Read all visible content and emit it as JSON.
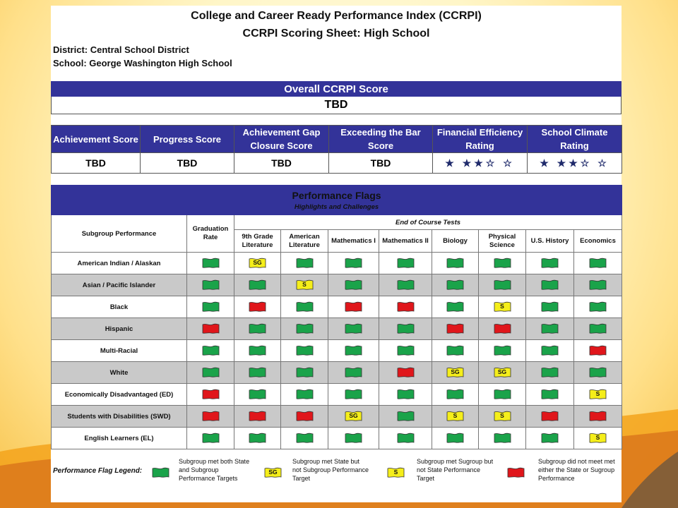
{
  "header": {
    "title_line1": "College and Career Ready Performance Index (CCRPI)",
    "title_line2": "CCRPI Scoring Sheet:  High School",
    "district": "District: Central School District",
    "school": "School: George Washington High School"
  },
  "overall": {
    "label": "Overall CCRPI Score",
    "value": "TBD"
  },
  "scores": [
    {
      "label": "Achievement Score",
      "value": "TBD"
    },
    {
      "label": "Progress Score",
      "value": "TBD"
    },
    {
      "label": "Achievement Gap Closure Score",
      "value": "TBD"
    },
    {
      "label": "Exceeding the Bar Score",
      "value": "TBD"
    },
    {
      "label": "Financial Efficiency Rating",
      "value": "★ ★★☆ ☆"
    },
    {
      "label": "School Climate Rating",
      "value": "★ ★★☆ ☆"
    }
  ],
  "flags_section": {
    "title": "Performance Flags",
    "subtitle": "Highlights and Challenges",
    "subgroup_header": "Subgroup Performance",
    "graduation": "Graduation Rate",
    "eoc_header": "End of Course Tests",
    "courses": [
      "9th Grade Literature",
      "American Literature",
      "Mathematics I",
      "Mathematics II",
      "Biology",
      "Physical Science",
      "U.S. History",
      "Economics"
    ]
  },
  "flag_colors": {
    "green": "#1aa34a",
    "red": "#e0161b",
    "yellow": "#f5ee1a"
  },
  "rows": [
    {
      "label": "American Indian / Alaskan",
      "flags": [
        "green",
        "yellow:SG",
        "green",
        "green",
        "green",
        "green",
        "green",
        "green",
        "green"
      ]
    },
    {
      "label": "Asian / Pacific Islander",
      "flags": [
        "green",
        "green",
        "yellow:S",
        "green",
        "green",
        "green",
        "green",
        "green",
        "green"
      ]
    },
    {
      "label": "Black",
      "flags": [
        "green",
        "red",
        "green",
        "red",
        "red",
        "green",
        "yellow:S",
        "green",
        "green"
      ]
    },
    {
      "label": "Hispanic",
      "flags": [
        "red",
        "green",
        "green",
        "green",
        "green",
        "red",
        "red",
        "green",
        "green"
      ]
    },
    {
      "label": "Multi-Racial",
      "flags": [
        "green",
        "green",
        "green",
        "green",
        "green",
        "green",
        "green",
        "green",
        "red"
      ]
    },
    {
      "label": "White",
      "flags": [
        "green",
        "green",
        "green",
        "green",
        "red",
        "yellow:SG",
        "yellow:SG",
        "green",
        "green"
      ]
    },
    {
      "label": "Economically Disadvantaged (ED)",
      "flags": [
        "red",
        "green",
        "green",
        "green",
        "green",
        "green",
        "green",
        "green",
        "yellow:S"
      ]
    },
    {
      "label": "Students with Disabilities (SWD)",
      "flags": [
        "red",
        "red",
        "red",
        "yellow:SG",
        "green",
        "yellow:S",
        "yellow:S",
        "red",
        "red"
      ]
    },
    {
      "label": "English Learners (EL)",
      "flags": [
        "green",
        "green",
        "green",
        "green",
        "green",
        "green",
        "green",
        "green",
        "yellow:S"
      ]
    }
  ],
  "legend": {
    "title": "Performance Flag Legend:",
    "items": [
      {
        "flag": "green",
        "text": "Subgroup met both State and Subgroup Performance Targets"
      },
      {
        "flag": "yellow:SG",
        "text": "Subgroup met State but not Subgroup Performance Target"
      },
      {
        "flag": "yellow:S",
        "text": "Subgroup met Sugroup but not State Performance Target"
      },
      {
        "flag": "red",
        "text": "Subgroup did not meet met either the State or Sugroup Performance"
      }
    ]
  }
}
